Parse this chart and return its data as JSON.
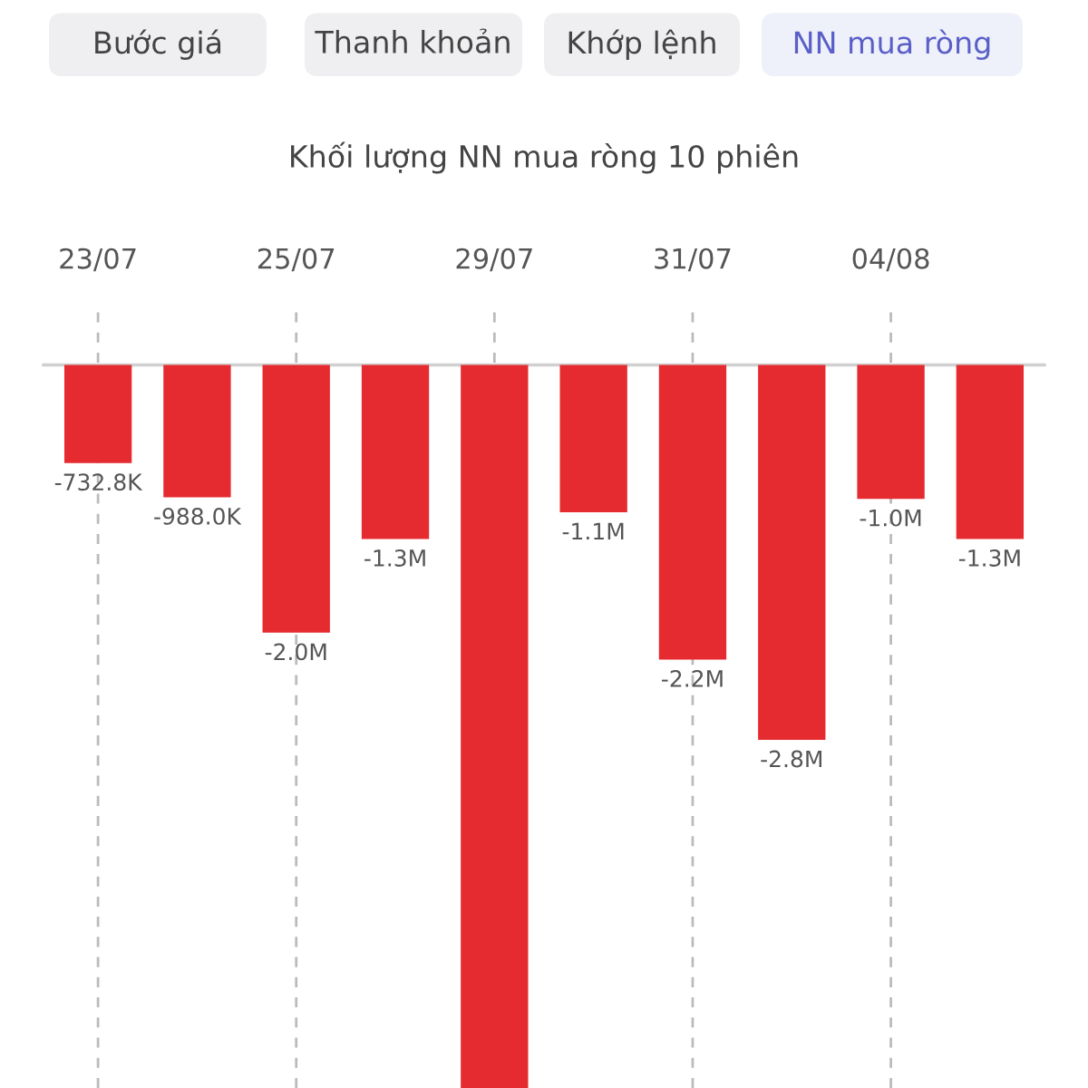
{
  "chart_data": {
    "type": "bar",
    "title": "Khối lượng NN mua ròng 10 phiên",
    "annotations": [
      "Bước giá",
      "Thanh khoản",
      "Khớp lệnh",
      "NN mua ròng"
    ],
    "categories": [
      "23/07",
      null,
      "25/07",
      null,
      "29/07",
      null,
      "31/07",
      null,
      "04/08",
      null
    ],
    "values": [
      -732800,
      -988000,
      -2000000,
      -1300000,
      -5400000,
      -1100000,
      -2200000,
      -2800000,
      -1000000,
      -1300000
    ],
    "value_labels": [
      "-732.8K",
      "-988.0K",
      "-2.0M",
      "-1.3M",
      null,
      "-1.1M",
      "-2.2M",
      "-2.8M",
      "-1.0M",
      "-1.3M"
    ],
    "color": "#e52b2f",
    "ylim": [
      -5400000,
      450000
    ],
    "grid": "x",
    "legend": false
  }
}
